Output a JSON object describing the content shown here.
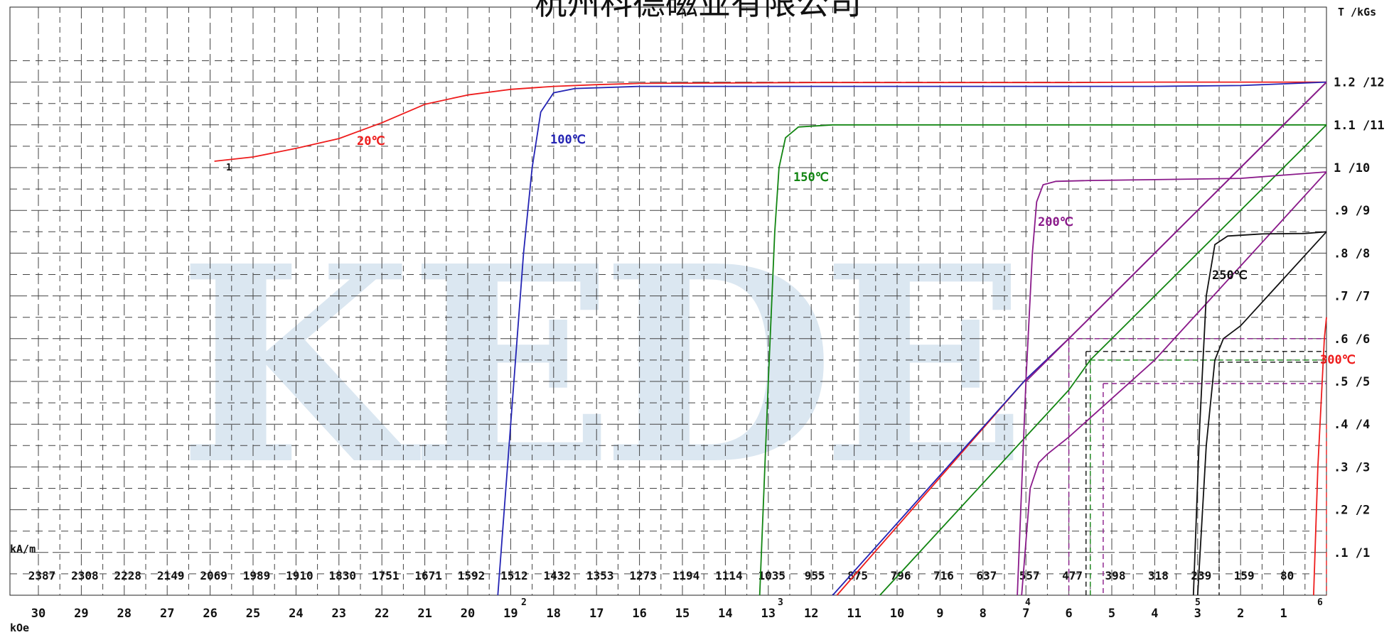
{
  "chart_data": {
    "type": "line",
    "title": "杭州科德磁业有限公司",
    "watermark": "KEDE",
    "y_unit_label": "T /kGs",
    "x_unit_label_top": "kA/m",
    "x_unit_label_bottom": "kOe",
    "y_ticks": [
      ".1 /1",
      ".2 /2",
      ".3 /3",
      ".4 /4",
      ".5 /5",
      ".6 /6",
      ".7 /7",
      ".8 /8",
      ".9 /9",
      "1 /10",
      "1.1 /11",
      "1.2 /12"
    ],
    "x_ticks_kAm": [
      "2387",
      "2308",
      "2228",
      "2149",
      "2069",
      "1989",
      "1910",
      "1830",
      "1751",
      "1671",
      "1592",
      "1512",
      "1432",
      "1353",
      "1273",
      "1194",
      "1114",
      "1035",
      "955",
      "875",
      "796",
      "716",
      "637",
      "557",
      "477",
      "398",
      "318",
      "239",
      "159",
      "80"
    ],
    "x_ticks_kOe": [
      "30",
      "29",
      "28",
      "27",
      "26",
      "25",
      "24",
      "23",
      "22",
      "21",
      "20",
      "19",
      "18",
      "17",
      "16",
      "15",
      "14",
      "13",
      "12",
      "11",
      "10",
      "9",
      "8",
      "7",
      "6",
      "5",
      "4",
      "3",
      "2",
      "1"
    ],
    "xlim_kOe": [
      30.6,
      0
    ],
    "ylim_T": [
      0,
      1.25
    ],
    "grid": true,
    "series": [
      {
        "name": "20℃",
        "label": "20℃",
        "marker": "1",
        "color": "#ee1c1c",
        "x": [
          25.9,
          25.0,
          24.0,
          23.0,
          22.0,
          21.0,
          20.0,
          19.0,
          18.0,
          17.0,
          16.0,
          14.0,
          12.0,
          10.0,
          8.0,
          6.0,
          4.0,
          2.0,
          1.0,
          0.0
        ],
        "y": [
          1.015,
          1.025,
          1.045,
          1.068,
          1.105,
          1.148,
          1.17,
          1.183,
          1.19,
          1.194,
          1.197,
          1.198,
          1.199,
          1.199,
          1.199,
          1.199,
          1.2,
          1.2,
          1.2,
          1.2
        ]
      },
      {
        "name": "20℃ recoil line",
        "color": "#ee1c1c",
        "x": [
          11.4,
          7.0,
          6.0,
          2.0,
          0.0
        ],
        "y": [
          0.0,
          0.505,
          0.6,
          1.0,
          1.2
        ]
      },
      {
        "name": "100℃",
        "label": "100℃",
        "marker": "2",
        "color": "#2424b4",
        "x": [
          19.3,
          19.0,
          18.7,
          18.5,
          18.3,
          18.0,
          17.5,
          16.0,
          14.0,
          12.0,
          10.0,
          8.0,
          6.0,
          4.0,
          2.0,
          0.0
        ],
        "y": [
          0.0,
          0.4,
          0.8,
          1.0,
          1.13,
          1.175,
          1.185,
          1.19,
          1.19,
          1.19,
          1.19,
          1.19,
          1.19,
          1.19,
          1.192,
          1.2
        ]
      },
      {
        "name": "100℃ recoil line",
        "color": "#2424b4",
        "x": [
          11.5,
          7.0,
          6.0,
          2.0,
          0.0
        ],
        "y": [
          0.0,
          0.505,
          0.6,
          1.0,
          1.2
        ]
      },
      {
        "name": "150℃",
        "label": "150℃",
        "marker": "3",
        "color": "#128512",
        "x": [
          13.2,
          13.0,
          12.85,
          12.75,
          12.6,
          12.3,
          11.5,
          10.0,
          8.0,
          6.0,
          4.0,
          2.0,
          0.0
        ],
        "y": [
          0.0,
          0.5,
          0.85,
          1.0,
          1.07,
          1.095,
          1.1,
          1.1,
          1.1,
          1.1,
          1.1,
          1.1,
          1.1
        ]
      },
      {
        "name": "150℃ recoil line",
        "color": "#128512",
        "x": [
          10.4,
          6.0,
          5.5,
          0.0
        ],
        "y": [
          0.0,
          0.48,
          0.55,
          1.1
        ]
      },
      {
        "name": "200℃",
        "label": "200℃",
        "marker": "4",
        "color": "#8a1a8a",
        "x": [
          7.2,
          7.0,
          6.85,
          6.75,
          6.6,
          6.3,
          5.5,
          4.0,
          2.0,
          0.0
        ],
        "y": [
          0.0,
          0.5,
          0.8,
          0.92,
          0.96,
          0.968,
          0.97,
          0.972,
          0.975,
          0.99
        ]
      },
      {
        "name": "200℃ curve 2",
        "color": "#8a1a8a",
        "x": [
          7.1,
          6.9,
          6.7,
          6.5,
          6.0,
          4.0,
          2.0,
          0.0
        ],
        "y": [
          0.0,
          0.25,
          0.31,
          0.33,
          0.37,
          0.55,
          0.77,
          0.99
        ]
      },
      {
        "name": "200℃ recoil line",
        "color": "#8a1a8a",
        "x": [
          7.0,
          6.0,
          2.0,
          0.0
        ],
        "y": [
          0.5,
          0.6,
          1.0,
          1.2
        ]
      },
      {
        "name": "250℃",
        "label": "250℃",
        "marker": "5",
        "color": "#111111",
        "x": [
          3.1,
          2.95,
          2.8,
          2.6,
          2.3,
          1.5,
          0.5,
          0.0
        ],
        "y": [
          0.0,
          0.4,
          0.7,
          0.82,
          0.84,
          0.845,
          0.846,
          0.85
        ]
      },
      {
        "name": "250℃ curve 2",
        "color": "#111111",
        "x": [
          3.0,
          2.8,
          2.6,
          2.4,
          2.0,
          1.0,
          0.0
        ],
        "y": [
          0.0,
          0.35,
          0.55,
          0.6,
          0.63,
          0.74,
          0.85
        ]
      },
      {
        "name": "300℃",
        "label": "300℃",
        "marker": "6",
        "color": "#ee1c1c",
        "x": [
          0.3,
          0.2,
          0.1,
          0.05,
          0.0
        ],
        "y": [
          0.0,
          0.3,
          0.5,
          0.6,
          0.65
        ]
      }
    ],
    "dashed_guides": [
      {
        "color": "#8a1a8a",
        "x": 6.0,
        "y": 0.6
      },
      {
        "color": "#8a1a8a",
        "x": 5.2,
        "y": 0.495
      },
      {
        "color": "#128512",
        "x": 5.5,
        "y": 0.55
      },
      {
        "color": "#111111",
        "x": 2.5,
        "y": 0.545
      },
      {
        "color": "#111111",
        "x": 5.6,
        "y": 0.57
      },
      {
        "color": "#ee1c1c",
        "x": 0.0,
        "y": 0.4
      }
    ]
  }
}
